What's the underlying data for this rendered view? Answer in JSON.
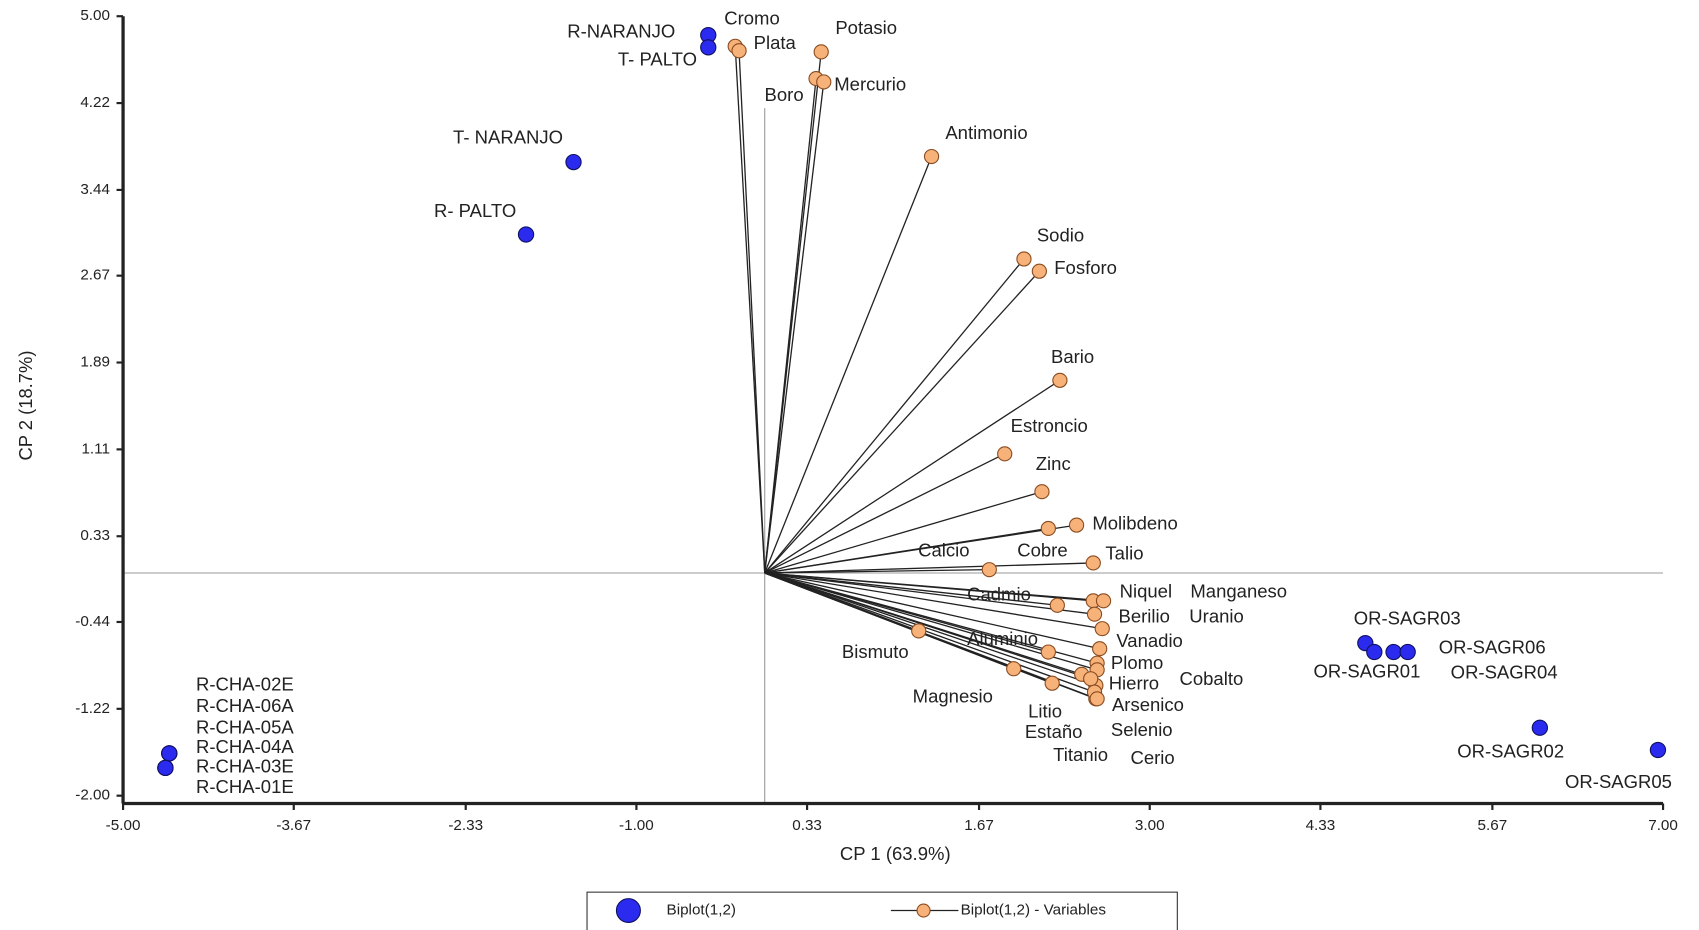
{
  "chart_data": {
    "type": "scatter",
    "x_label": "CP 1 (63.9%)",
    "y_label": "CP 2 (18.7%)",
    "xlim": [
      -5.0,
      7.0
    ],
    "ylim": [
      -2.07,
      5.0
    ],
    "xticks": [
      {
        "value": -5.0,
        "label": "-5.00"
      },
      -3.67,
      -2.33,
      {
        "value": -1.0,
        "label": "-1.00"
      },
      0.33,
      1.67,
      {
        "value": 3.0,
        "label": "3.00"
      },
      4.33,
      5.67,
      {
        "value": 7.0,
        "label": "7.00"
      }
    ],
    "yticks": [
      {
        "value": -2.0,
        "label": "-2.00"
      },
      -1.22,
      -0.44,
      0.33,
      1.11,
      1.89,
      2.67,
      3.44,
      4.22,
      {
        "value": 5.0,
        "label": "5.00"
      }
    ],
    "series": [
      {
        "name": "Biplot(1,2)",
        "color": "#2b2bf0",
        "labels": [
          "R-NARANJO",
          "T- PALTO",
          "T- NARANJO",
          "R- PALTO",
          "R-CHA-02E",
          "R-CHA-06A",
          "R-CHA-05A",
          "R-CHA-04A",
          "R-CHA-03E",
          "R-CHA-01E",
          "OR-SAGR03",
          "OR-SAGR01",
          "OR-SAGR06",
          "OR-SAGR04",
          "OR-SAGR02",
          "OR-SAGR05"
        ],
        "x": [
          -0.44,
          -0.44,
          -1.49,
          -1.86,
          -4.64,
          -4.64,
          -4.64,
          -4.67,
          -4.67,
          -4.67,
          4.68,
          4.75,
          4.9,
          5.01,
          6.04,
          6.96
        ],
        "values": [
          4.83,
          4.72,
          3.69,
          3.04,
          -1.62,
          -1.62,
          -1.62,
          -1.75,
          -1.75,
          -1.75,
          -0.63,
          -0.71,
          -0.71,
          -0.71,
          -1.39,
          -1.59
        ]
      },
      {
        "name": "Biplot(1,2) - Variables",
        "color": "#f7b27a",
        "labels": [
          "Cromo",
          "Plata",
          "Potasio",
          "Boro",
          "Mercurio",
          "Antimonio",
          "Sodio",
          "Fosforo",
          "Bario",
          "Estroncio",
          "Zinc",
          "Molibdeno",
          "Calcio",
          "Cobre",
          "Talio",
          "Niquel",
          "Manganeso",
          "Cadmio",
          "Berilio",
          "Uranio",
          "Bismuto",
          "Aluminio",
          "Vanadio",
          "Plomo",
          "Magnesio",
          "Hierro",
          "Cobalto",
          "Litio",
          "Arsenico",
          "Estaño",
          "Selenio",
          "Titanio",
          "Cerio"
        ],
        "x": [
          -0.23,
          -0.2,
          0.44,
          0.4,
          0.46,
          1.3,
          2.02,
          2.14,
          2.3,
          1.87,
          2.16,
          2.43,
          1.75,
          2.21,
          2.56,
          2.56,
          2.64,
          2.28,
          2.57,
          2.63,
          1.2,
          2.21,
          2.61,
          2.59,
          1.94,
          2.47,
          2.59,
          2.24,
          2.58,
          2.54,
          2.58,
          2.57,
          2.59
        ],
        "values": [
          4.73,
          4.69,
          4.68,
          4.44,
          4.41,
          3.74,
          2.82,
          2.71,
          1.73,
          1.07,
          0.73,
          0.43,
          0.03,
          0.4,
          0.09,
          -0.25,
          -0.25,
          -0.29,
          -0.37,
          -0.5,
          -0.52,
          -0.71,
          -0.68,
          -0.81,
          -0.86,
          -0.91,
          -0.87,
          -0.99,
          -1.01,
          -0.95,
          -1.13,
          -1.07,
          -1.13
        ]
      }
    ]
  }
}
